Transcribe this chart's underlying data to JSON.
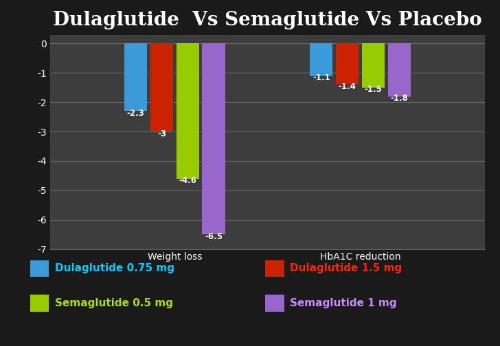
{
  "title": "Dulaglutide  Vs Semaglutide Vs Placebo",
  "categories": [
    "Weight loss",
    "HbA1C reduction"
  ],
  "series": {
    "Dulaglutide 0.75 mg": {
      "values": [
        -2.3,
        -1.1
      ],
      "color": "#3a9ad9"
    },
    "Dulaglutide 1.5 mg": {
      "values": [
        -3.0,
        -1.4
      ],
      "color": "#cc2200"
    },
    "Semaglutide 0.5 mg": {
      "values": [
        -4.6,
        -1.5
      ],
      "color": "#99cc00"
    },
    "Semaglutide 1 mg": {
      "values": [
        -6.5,
        -1.8
      ],
      "color": "#9966cc"
    }
  },
  "series_order": [
    "Dulaglutide 0.75 mg",
    "Dulaglutide 1.5 mg",
    "Semaglutide 0.5 mg",
    "Semaglutide 1 mg"
  ],
  "ylim": [
    -7,
    0.3
  ],
  "yticks": [
    0,
    -1,
    -2,
    -3,
    -4,
    -5,
    -6,
    -7
  ],
  "background_color": "#1a1a1a",
  "plot_bg_color": "#3d3d3d",
  "grid_color": "#666666",
  "text_color": "#ffffff",
  "title_fontsize": 20,
  "legend_label_colors": {
    "Dulaglutide 0.75 mg": "#00ccff",
    "Dulaglutide 1.5 mg": "#ff2200",
    "Semaglutide 0.5 mg": "#aadd00",
    "Semaglutide 1 mg": "#cc88ff"
  },
  "bar_labels": {
    "Dulaglutide 0.75 mg": [
      "-2.3",
      "-1.1"
    ],
    "Dulaglutide 1.5 mg": [
      "-3",
      "-1.4"
    ],
    "Semaglutide 0.5 mg": [
      "-4.6",
      "-1.5"
    ],
    "Semaglutide 1 mg": [
      "-6.5",
      "-1.8"
    ]
  }
}
